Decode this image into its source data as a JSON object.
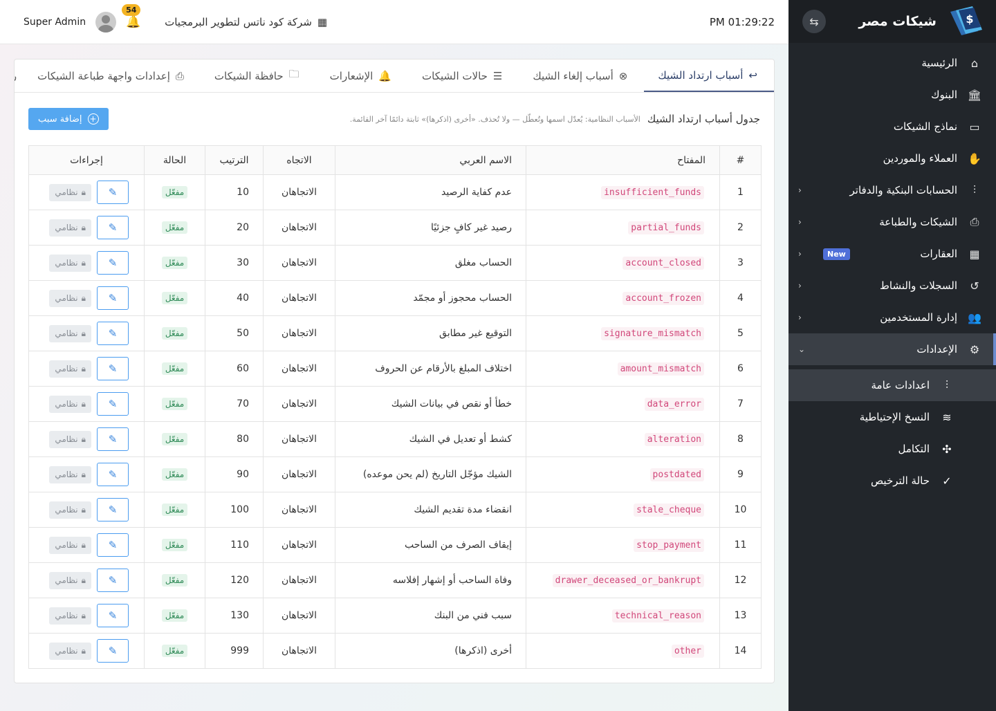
{
  "sidebar": {
    "brand": "شيكات مصر",
    "items": [
      {
        "label": "الرئيسية",
        "icon": "home-icon",
        "glyph": "⌂"
      },
      {
        "label": "البنوك",
        "icon": "bank-icon",
        "glyph": "🏛"
      },
      {
        "label": "نماذج الشيكات",
        "icon": "cheque-icon",
        "glyph": "▭"
      },
      {
        "label": "العملاء والموردين",
        "icon": "handshake-icon",
        "glyph": "✋"
      },
      {
        "label": "الحسابات البنكية والدفاتر",
        "icon": "sliders-icon",
        "glyph": "⫶",
        "chevron": "‹"
      },
      {
        "label": "الشيكات والطباعة",
        "icon": "printer-icon",
        "glyph": "⎙",
        "chevron": "‹"
      },
      {
        "label": "العقارات",
        "icon": "building-icon",
        "glyph": "▦",
        "chevron": "‹",
        "badge": "New"
      },
      {
        "label": "السجلات والنشاط",
        "icon": "history-icon",
        "glyph": "↺",
        "chevron": "‹"
      },
      {
        "label": "إدارة المستخدمين",
        "icon": "users-icon",
        "glyph": "👥",
        "chevron": "‹"
      },
      {
        "label": "الإعدادات",
        "icon": "gear-icon",
        "glyph": "⚙",
        "chevron": "⌄"
      }
    ],
    "subitems": [
      {
        "label": "اعدادات عامة",
        "icon": "sliders-icon",
        "glyph": "⫶"
      },
      {
        "label": "النسخ الإحتياطية",
        "icon": "database-icon",
        "glyph": "≋"
      },
      {
        "label": "التكامل",
        "icon": "plug-icon",
        "glyph": "✣"
      },
      {
        "label": "حالة الترخيص",
        "icon": "check-circle-icon",
        "glyph": "✓"
      }
    ]
  },
  "topbar": {
    "user": "Super Admin",
    "notifications": "54",
    "company": "شركة كود ناتس لتطوير البرمجيات",
    "time": "PM 01:29:22"
  },
  "tabs": [
    {
      "label": "أسباب ارتداد الشيك",
      "glyph": "↩",
      "icon": "return-icon"
    },
    {
      "label": "أسباب إلغاء الشيك",
      "glyph": "⊗",
      "icon": "cancel-circle-icon"
    },
    {
      "label": "حالات الشيكات",
      "glyph": "☰",
      "icon": "checklist-icon"
    },
    {
      "label": "الإشعارات",
      "glyph": "🔔",
      "icon": "bell-icon"
    },
    {
      "label": "حافظة الشيكات",
      "glyph": "🗀",
      "icon": "folder-icon"
    },
    {
      "label": "إعدادات واجهة طباعة الشيكات",
      "glyph": "⎙",
      "icon": "printer-icon"
    },
    {
      "label": "ركة",
      "glyph": "",
      "icon": ""
    }
  ],
  "toolbar": {
    "title": "جدول أسباب ارتداد الشيك",
    "note": "الأسباب النظامية: يُعدّل اسمها وتُعطّل — ولا تُحذف. «أخرى (اذكرها)» ثابتة دائمًا آخر القائمة.",
    "add_label": "إضافة سبب"
  },
  "table": {
    "headers": {
      "num": "#",
      "key": "المفتاح",
      "arabic": "الاسم العربي",
      "direction": "الاتجاه",
      "order": "الترتيب",
      "status": "الحالة",
      "actions": "إجراءات"
    },
    "rows": [
      {
        "num": "1",
        "key": "insufficient_funds",
        "arabic": "عدم كفاية الرصيد",
        "direction": "الاتجاهان",
        "order": "10",
        "status": "مفعّل",
        "system": "نظامي"
      },
      {
        "num": "2",
        "key": "partial_funds",
        "arabic": "رصيد غير كافٍ جزئيًا",
        "direction": "الاتجاهان",
        "order": "20",
        "status": "مفعّل",
        "system": "نظامي"
      },
      {
        "num": "3",
        "key": "account_closed",
        "arabic": "الحساب مغلق",
        "direction": "الاتجاهان",
        "order": "30",
        "status": "مفعّل",
        "system": "نظامي"
      },
      {
        "num": "4",
        "key": "account_frozen",
        "arabic": "الحساب محجوز أو مجمّد",
        "direction": "الاتجاهان",
        "order": "40",
        "status": "مفعّل",
        "system": "نظامي"
      },
      {
        "num": "5",
        "key": "signature_mismatch",
        "arabic": "التوقيع غير مطابق",
        "direction": "الاتجاهان",
        "order": "50",
        "status": "مفعّل",
        "system": "نظامي"
      },
      {
        "num": "6",
        "key": "amount_mismatch",
        "arabic": "اختلاف المبلغ بالأرقام عن الحروف",
        "direction": "الاتجاهان",
        "order": "60",
        "status": "مفعّل",
        "system": "نظامي"
      },
      {
        "num": "7",
        "key": "data_error",
        "arabic": "خطأ أو نقص في بيانات الشيك",
        "direction": "الاتجاهان",
        "order": "70",
        "status": "مفعّل",
        "system": "نظامي"
      },
      {
        "num": "8",
        "key": "alteration",
        "arabic": "كشط أو تعديل في الشيك",
        "direction": "الاتجاهان",
        "order": "80",
        "status": "مفعّل",
        "system": "نظامي"
      },
      {
        "num": "9",
        "key": "postdated",
        "arabic": "الشيك مؤجّل التاريخ (لم يحن موعده)",
        "direction": "الاتجاهان",
        "order": "90",
        "status": "مفعّل",
        "system": "نظامي"
      },
      {
        "num": "10",
        "key": "stale_cheque",
        "arabic": "انقضاء مدة تقديم الشيك",
        "direction": "الاتجاهان",
        "order": "100",
        "status": "مفعّل",
        "system": "نظامي"
      },
      {
        "num": "11",
        "key": "stop_payment",
        "arabic": "إيقاف الصرف من الساحب",
        "direction": "الاتجاهان",
        "order": "110",
        "status": "مفعّل",
        "system": "نظامي"
      },
      {
        "num": "12",
        "key": "drawer_deceased_or_bankrupt",
        "arabic": "وفاة الساحب أو إشهار إفلاسه",
        "direction": "الاتجاهان",
        "order": "120",
        "status": "مفعّل",
        "system": "نظامي"
      },
      {
        "num": "13",
        "key": "technical_reason",
        "arabic": "سبب فني من البنك",
        "direction": "الاتجاهان",
        "order": "130",
        "status": "مفعّل",
        "system": "نظامي"
      },
      {
        "num": "14",
        "key": "other",
        "arabic": "أخرى (اذكرها)",
        "direction": "الاتجاهان",
        "order": "999",
        "status": "مفعّل",
        "system": "نظامي"
      }
    ]
  },
  "colors": {
    "sidebar_bg": "#22262b",
    "accent": "#55a7f0",
    "key_text": "#d1477a",
    "status_green": "#2f8a57"
  }
}
